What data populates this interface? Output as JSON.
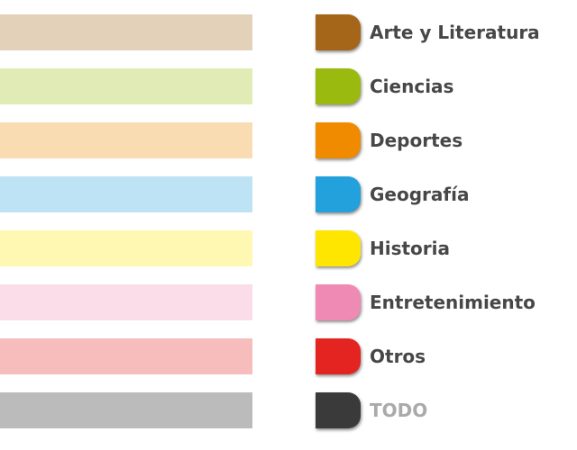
{
  "categories": [
    {
      "label": "Arte y Literatura",
      "chip_color": "#A5661A",
      "bar_color": "#E4D1B9"
    },
    {
      "label": "Ciencias",
      "chip_color": "#9BBA0F",
      "bar_color": "#E0EBB6"
    },
    {
      "label": "Deportes",
      "chip_color": "#F08B00",
      "bar_color": "#FADCB2"
    },
    {
      "label": "Geografía",
      "chip_color": "#22A1DC",
      "bar_color": "#BDE3F5"
    },
    {
      "label": "Historia",
      "chip_color": "#FFE600",
      "bar_color": "#FEF8B2"
    },
    {
      "label": "Entretenimiento",
      "chip_color": "#EF8AB4",
      "bar_color": "#FADDE8"
    },
    {
      "label": "Otros",
      "chip_color": "#E32421",
      "bar_color": "#F6BDBC"
    },
    {
      "label": "TODO",
      "chip_color": "#3A3A3A",
      "bar_color": "#BBBBBB",
      "muted": true
    }
  ]
}
